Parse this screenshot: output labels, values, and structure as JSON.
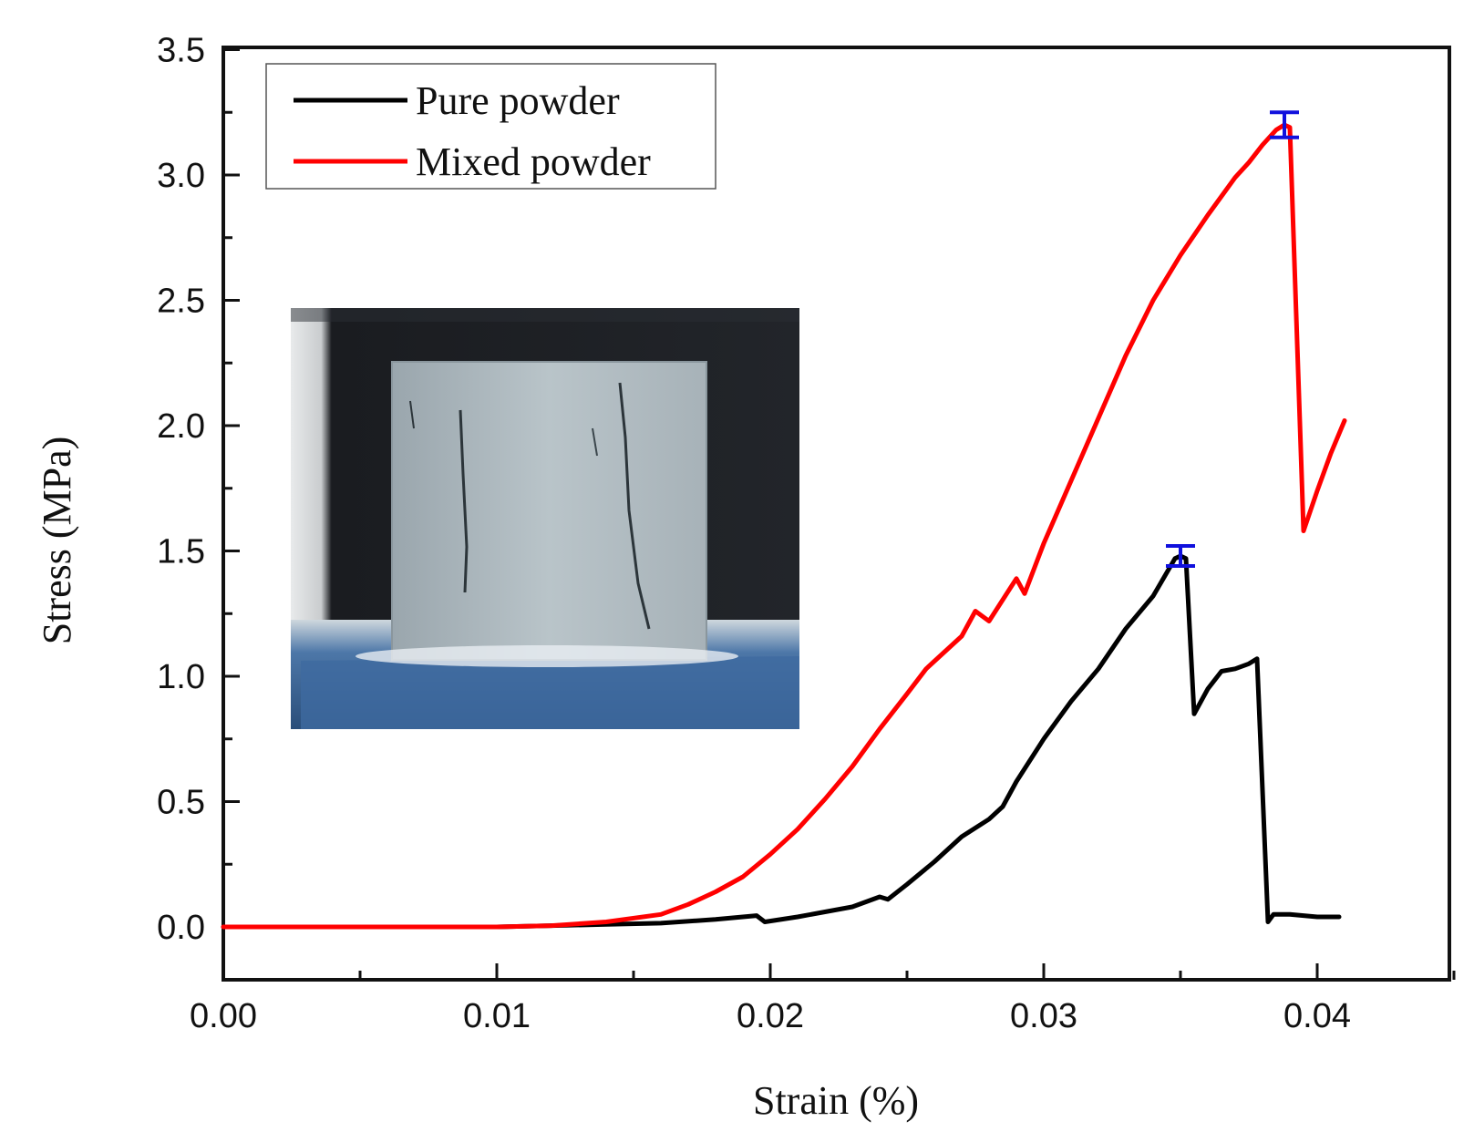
{
  "chart_data": {
    "type": "line",
    "title": "",
    "xlabel": "Strain (%)",
    "ylabel": "Stress (MPa)",
    "xlim": [
      0,
      0.0455
    ],
    "ylim": [
      -0.2,
      3.5
    ],
    "xticks": [
      0.0,
      0.01,
      0.02,
      0.03,
      0.04
    ],
    "xtick_labels": [
      "0.00",
      "0.01",
      "0.02",
      "0.03",
      "0.04"
    ],
    "yticks": [
      0.0,
      0.5,
      1.0,
      1.5,
      2.0,
      2.5,
      3.0,
      3.5
    ],
    "ytick_labels": [
      "0.0",
      "0.5",
      "1.0",
      "1.5",
      "2.0",
      "2.5",
      "3.0",
      "3.5"
    ],
    "grid": false,
    "legend_position": "top-left",
    "series": [
      {
        "name": "Pure powder",
        "color": "#000000",
        "x": [
          0.0,
          0.01,
          0.012,
          0.014,
          0.016,
          0.018,
          0.0195,
          0.0198,
          0.021,
          0.022,
          0.023,
          0.024,
          0.0243,
          0.025,
          0.026,
          0.027,
          0.028,
          0.0285,
          0.029,
          0.03,
          0.031,
          0.032,
          0.033,
          0.034,
          0.0348,
          0.035,
          0.0352,
          0.0355,
          0.036,
          0.0365,
          0.037,
          0.0375,
          0.0378,
          0.0382,
          0.0384,
          0.039,
          0.04,
          0.0408
        ],
        "y": [
          0.0,
          0.0,
          0.005,
          0.01,
          0.015,
          0.03,
          0.045,
          0.02,
          0.04,
          0.06,
          0.08,
          0.12,
          0.11,
          0.17,
          0.26,
          0.36,
          0.43,
          0.48,
          0.58,
          0.75,
          0.9,
          1.03,
          1.19,
          1.32,
          1.47,
          1.48,
          1.47,
          0.85,
          0.95,
          1.02,
          1.03,
          1.05,
          1.07,
          0.02,
          0.05,
          0.05,
          0.04,
          0.04
        ],
        "error_bar": {
          "x": 0.035,
          "y": 1.48,
          "err": 0.04
        }
      },
      {
        "name": "Mixed powder",
        "color": "#ff0000",
        "x": [
          0.0,
          0.01,
          0.012,
          0.014,
          0.016,
          0.017,
          0.018,
          0.019,
          0.02,
          0.021,
          0.022,
          0.023,
          0.024,
          0.025,
          0.0257,
          0.026,
          0.027,
          0.0275,
          0.028,
          0.029,
          0.0293,
          0.03,
          0.031,
          0.032,
          0.033,
          0.034,
          0.035,
          0.036,
          0.037,
          0.0375,
          0.038,
          0.0385,
          0.0388,
          0.039,
          0.0395,
          0.04,
          0.0405,
          0.041
        ],
        "y": [
          0.0,
          0.0,
          0.005,
          0.02,
          0.05,
          0.09,
          0.14,
          0.2,
          0.29,
          0.39,
          0.51,
          0.64,
          0.79,
          0.93,
          1.03,
          1.06,
          1.16,
          1.26,
          1.22,
          1.39,
          1.33,
          1.53,
          1.78,
          2.03,
          2.28,
          2.5,
          2.68,
          2.84,
          2.99,
          3.05,
          3.12,
          3.18,
          3.2,
          3.19,
          1.58,
          1.74,
          1.89,
          2.02
        ],
        "error_bar": {
          "x": 0.0388,
          "y": 3.2,
          "err": 0.05
        }
      }
    ],
    "inset": {
      "description_name": "specimen-photo"
    }
  }
}
